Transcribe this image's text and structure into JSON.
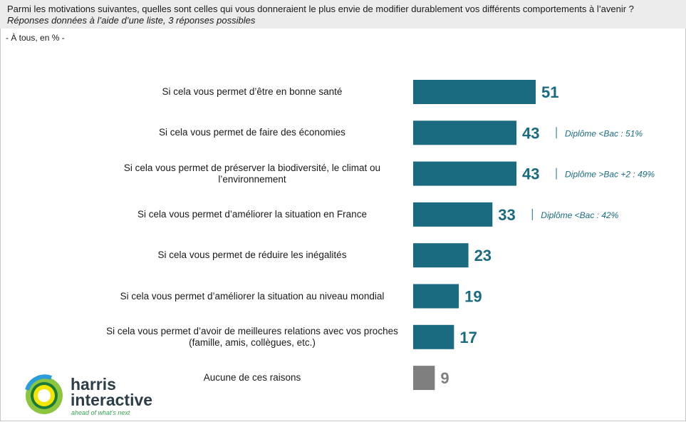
{
  "header": {
    "question": "Parmi les motivations suivantes, quelles sont celles qui vous donneraient le plus envie de modifier durablement vos différents comportements à l’avenir ?",
    "subtitle": "Réponses données à l’aide d’une liste, 3 réponses possibles",
    "base": "- À tous, en %  -"
  },
  "colors": {
    "primary_bar": "#1a6b80",
    "none_bar": "#7f7f7f",
    "value_text": "#1a6b80",
    "note_text": "#1a6b80"
  },
  "chart_data": {
    "type": "bar",
    "orientation": "horizontal",
    "title": "",
    "xlabel": "",
    "ylabel": "",
    "xlim": [
      0,
      51
    ],
    "categories": [
      "Si cela vous permet d’être en bonne santé",
      "Si cela vous permet de faire des économies",
      "Si cela vous permet de préserver la biodiversité, le climat ou l’environnement",
      "Si cela vous permet d’améliorer la situation en France",
      "Si cela vous permet de réduire les inégalités",
      "Si cela vous permet d’améliorer la situation au niveau mondial",
      "Si cela vous permet d’avoir de meilleures relations avec vos proches (famille, amis, collègues, etc.)",
      "Aucune de ces raisons"
    ],
    "values": [
      51,
      43,
      43,
      33,
      23,
      19,
      17,
      9
    ],
    "notes": [
      "",
      "Diplôme <Bac : 51%",
      "Diplôme >Bac +2 : 49%",
      "Diplôme <Bac : 42%",
      "",
      "",
      "",
      ""
    ]
  },
  "logo": {
    "line1": "harris",
    "line2": "interactive",
    "tagline": "ahead of what’s next"
  }
}
